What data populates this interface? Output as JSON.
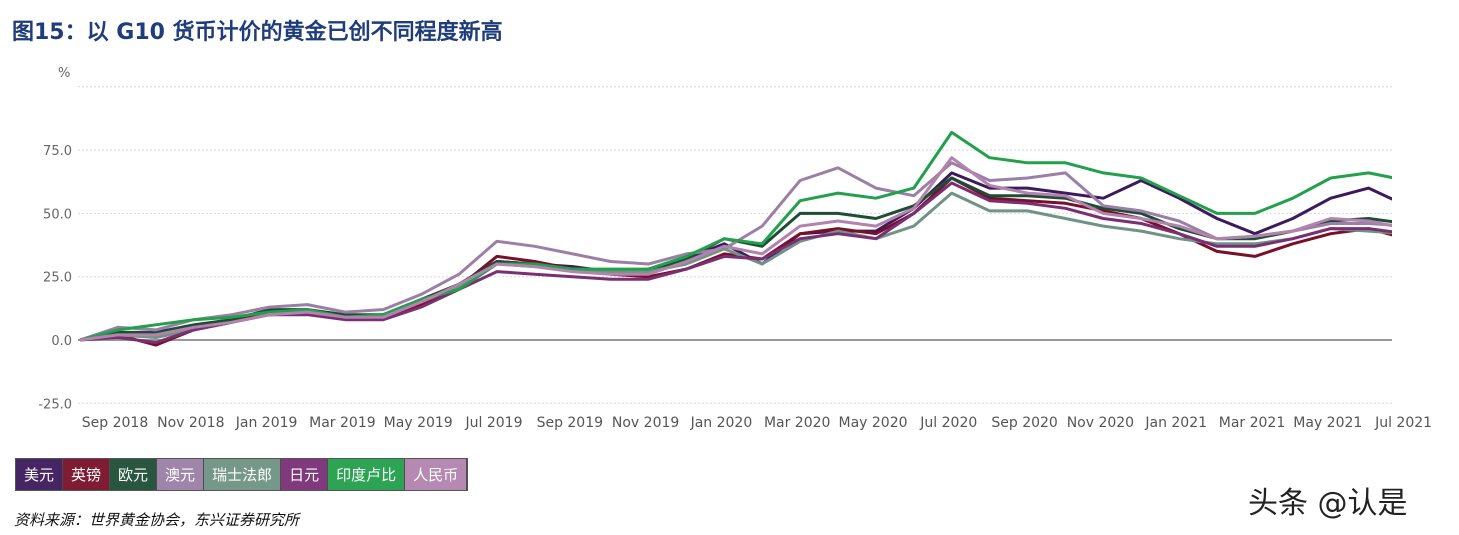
{
  "title": "图15：以 G10 货币计价的黄金已创不同程度新高",
  "source": "资料来源：世界黄金协会，东兴证券研究所",
  "watermark": "头条 @认是",
  "chart_data": {
    "type": "line",
    "ylabel": "%",
    "ylim": [
      -25,
      100
    ],
    "yticks": [
      "-25.0",
      "0.0",
      "25.0",
      "50.0",
      "75.0"
    ],
    "ytick_values": [
      -25,
      0,
      25,
      50,
      75
    ],
    "grid": true,
    "legend_position": "bottom",
    "xtick_labels": [
      "Sep 2018",
      "Nov 2018",
      "Jan 2019",
      "Mar 2019",
      "May 2019",
      "Jul 2019",
      "Sep 2019",
      "Nov 2019",
      "Jan 2020",
      "Mar 2020",
      "May 2020",
      "Jul 2020",
      "Sep 2020",
      "Nov 2020",
      "Jan 2021",
      "Mar 2021",
      "May 2021",
      "Jul 2021"
    ],
    "x": [
      "2018-09",
      "2018-10",
      "2018-11",
      "2018-12",
      "2019-01",
      "2019-02",
      "2019-03",
      "2019-04",
      "2019-05",
      "2019-06",
      "2019-07",
      "2019-08",
      "2019-09",
      "2019-10",
      "2019-11",
      "2019-12",
      "2020-01",
      "2020-02",
      "2020-03",
      "2020-04",
      "2020-05",
      "2020-06",
      "2020-07",
      "2020-08",
      "2020-09",
      "2020-10",
      "2020-11",
      "2020-12",
      "2021-01",
      "2021-02",
      "2021-03",
      "2021-04",
      "2021-05",
      "2021-06",
      "2021-07",
      "2021-08"
    ],
    "series": [
      {
        "name": "美元",
        "color": "#3d1a5c",
        "values": [
          0,
          3,
          2,
          5,
          8,
          10,
          11,
          9,
          10,
          15,
          22,
          31,
          30,
          29,
          27,
          28,
          32,
          38,
          30,
          42,
          43,
          43,
          52,
          66,
          60,
          60,
          58,
          56,
          63,
          56,
          48,
          42,
          48,
          56,
          60,
          53
        ]
      },
      {
        "name": "英镑",
        "color": "#7a0f2a",
        "values": [
          0,
          2,
          -2,
          4,
          7,
          11,
          12,
          9,
          9,
          14,
          21,
          33,
          31,
          28,
          26,
          25,
          28,
          34,
          32,
          42,
          44,
          42,
          50,
          64,
          56,
          55,
          54,
          51,
          48,
          42,
          35,
          33,
          38,
          42,
          44,
          40
        ]
      },
      {
        "name": "欧元",
        "color": "#1d4d35",
        "values": [
          0,
          3,
          3,
          6,
          8,
          12,
          12,
          10,
          10,
          16,
          22,
          31,
          30,
          28,
          27,
          27,
          32,
          40,
          37,
          50,
          50,
          48,
          53,
          64,
          57,
          57,
          56,
          52,
          50,
          44,
          40,
          40,
          43,
          47,
          48,
          46
        ]
      },
      {
        "name": "澳元",
        "color": "#9b7fa6",
        "values": [
          0,
          5,
          4,
          8,
          10,
          13,
          14,
          11,
          12,
          18,
          26,
          39,
          37,
          34,
          31,
          30,
          34,
          36,
          45,
          63,
          68,
          60,
          57,
          70,
          63,
          64,
          66,
          53,
          51,
          47,
          40,
          41,
          43,
          46,
          46,
          45
        ]
      },
      {
        "name": "瑞士法郎",
        "color": "#6f9384",
        "values": [
          0,
          2,
          1,
          4,
          7,
          10,
          11,
          9,
          9,
          15,
          21,
          30,
          29,
          28,
          27,
          27,
          30,
          36,
          30,
          39,
          43,
          40,
          45,
          58,
          51,
          51,
          48,
          45,
          43,
          40,
          38,
          38,
          40,
          44,
          43,
          42
        ]
      },
      {
        "name": "日元",
        "color": "#7a2f75",
        "values": [
          0,
          1,
          -1,
          4,
          7,
          10,
          10,
          8,
          8,
          13,
          20,
          27,
          26,
          25,
          24,
          24,
          28,
          33,
          32,
          40,
          42,
          40,
          50,
          62,
          55,
          54,
          52,
          48,
          46,
          42,
          37,
          37,
          40,
          44,
          44,
          42
        ]
      },
      {
        "name": "印度卢比",
        "color": "#22a04b",
        "values": [
          0,
          4,
          6,
          8,
          9,
          11,
          12,
          9,
          10,
          16,
          20,
          30,
          30,
          28,
          28,
          28,
          33,
          40,
          38,
          55,
          58,
          56,
          60,
          82,
          72,
          70,
          70,
          66,
          64,
          57,
          50,
          50,
          56,
          64,
          66,
          63
        ]
      },
      {
        "name": "人民币",
        "color": "#b283ad",
        "values": [
          0,
          2,
          2,
          5,
          7,
          10,
          11,
          9,
          9,
          15,
          22,
          30,
          29,
          27,
          26,
          26,
          31,
          37,
          34,
          45,
          47,
          45,
          52,
          72,
          61,
          58,
          57,
          50,
          48,
          45,
          40,
          41,
          43,
          48,
          47,
          44
        ]
      }
    ]
  }
}
